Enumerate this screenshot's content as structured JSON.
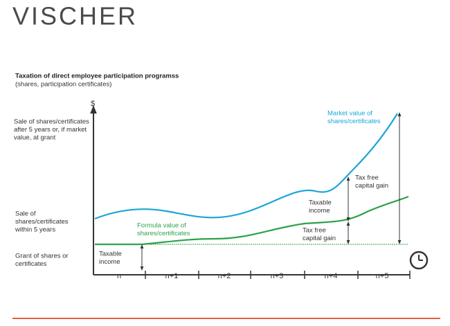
{
  "logo": "VISCHER",
  "title": "Taxation of direct employee participation programss",
  "subtitle": "(shares, participation certificates)",
  "y_axis_label": "$",
  "row_labels": [
    [
      "Sale of shares/certificates",
      "after 5 years or, if market",
      "value, at grant"
    ],
    [
      "Sale of",
      "shares/certificates",
      "within 5 years"
    ],
    [
      "Grant of shares or",
      "certificates"
    ]
  ],
  "periods": [
    "n",
    "n+1",
    "n+2",
    "n+3",
    "n+4",
    "n+5"
  ],
  "annotations": {
    "taxable_income_grant": [
      "Taxable",
      "income"
    ],
    "formula_value": [
      "Formula value of",
      "shares/certificates"
    ],
    "market_value": [
      "Market value of",
      "shares/certificates"
    ],
    "taxable_income_sale": [
      "Taxable",
      "income"
    ],
    "tax_free_gain_market": [
      "Tax free",
      "capital gain"
    ],
    "tax_free_gain_formula": [
      "Tax free",
      "capital gain"
    ]
  }
}
